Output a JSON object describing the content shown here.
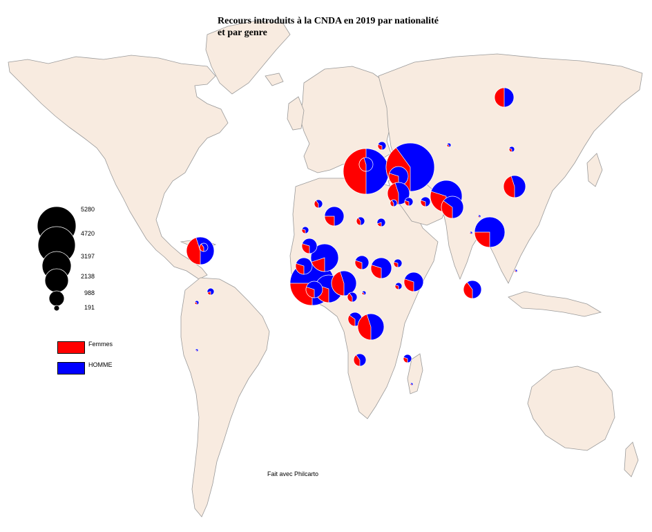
{
  "map": {
    "title_line1": "Recours introduits à la CNDA en 2019  par nationalité",
    "title_line2": "et par genre",
    "credit": "Fait avec Philcarto",
    "land_color": "#f8ebe0",
    "border_color": "#999999",
    "women_color": "#ff0000",
    "men_color": "#0000ff",
    "size_legend": {
      "values": [
        "5280",
        "4720",
        "3197",
        "2138",
        "988",
        "191"
      ]
    },
    "color_legend": {
      "women_label": "Femmes",
      "men_label": "HOMME"
    }
  }
}
